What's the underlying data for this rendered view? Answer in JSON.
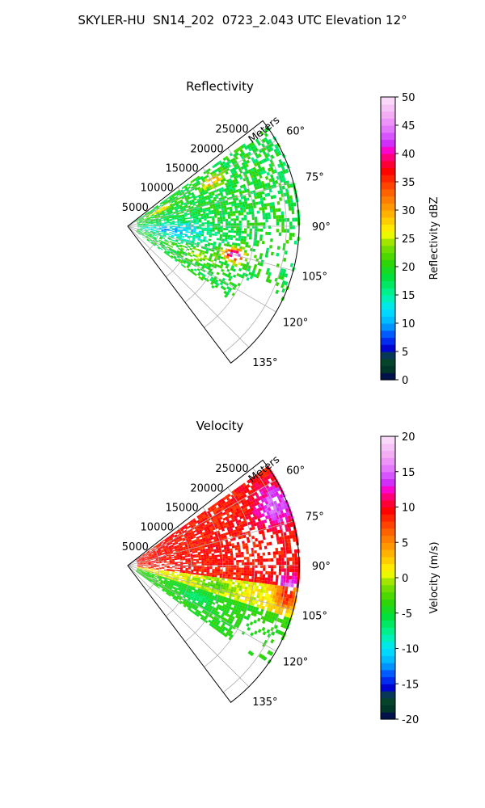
{
  "title": "SKYLER-HU  SN14_202  0723_2.043 UTC Elevation 12°",
  "chart_data": [
    {
      "type": "heatmap",
      "projection": "polar-sector",
      "title": "Reflectivity",
      "radial_label": "Meters",
      "radial_ticks": [
        5000,
        10000,
        15000,
        20000,
        25000
      ],
      "radial_range": [
        0,
        27000
      ],
      "azimuth_range_deg": [
        52,
        143
      ],
      "azimuth_ticks": [
        60,
        75,
        90,
        105,
        120,
        135
      ],
      "azimuth_tick_labels": [
        "60°",
        "75°",
        "90°",
        "105°",
        "120°",
        "135°"
      ],
      "grid": true,
      "colorbar": {
        "label": "Reflectivity dBZ",
        "range": [
          0,
          50
        ],
        "ticks": [
          0,
          5,
          10,
          15,
          20,
          25,
          30,
          35,
          40,
          45,
          50
        ],
        "levels": 40,
        "colormap": "NWS reflectivity (navy - blue - cyan - green - yellow - orange - red - magenta - white)"
      },
      "features": [
        {
          "desc": "broad weak echo field",
          "value_dbz": 20,
          "azimuth_deg": [
            55,
            125
          ],
          "range_m": [
            3000,
            27000
          ]
        },
        {
          "desc": "weak echoes near radar",
          "value_dbz": 12,
          "azimuth_deg": [
            85,
            110
          ],
          "range_m": [
            500,
            14000
          ]
        },
        {
          "desc": "strong core",
          "value_dbz": 45,
          "azimuth_deg": 105,
          "range_m": 17500
        },
        {
          "desc": "moderate echoes",
          "value_dbz": 33,
          "azimuth_deg": 62,
          "range_m": 15000
        }
      ]
    },
    {
      "type": "heatmap",
      "projection": "polar-sector",
      "title": "Velocity",
      "radial_label": "Meters",
      "radial_ticks": [
        5000,
        10000,
        15000,
        20000,
        25000
      ],
      "radial_range": [
        0,
        27000
      ],
      "azimuth_range_deg": [
        52,
        143
      ],
      "azimuth_ticks": [
        60,
        75,
        90,
        105,
        120,
        135
      ],
      "azimuth_tick_labels": [
        "60°",
        "75°",
        "90°",
        "105°",
        "120°",
        "135°"
      ],
      "grid": true,
      "colorbar": {
        "label": "Velocity (m/s)",
        "range": [
          -20,
          20
        ],
        "ticks": [
          -20,
          -15,
          -10,
          -5,
          0,
          5,
          10,
          15,
          20
        ],
        "levels": 40,
        "colormap": "diverging (navy - blue - cyan - green - yellow - orange - red - magenta - white)"
      },
      "features": [
        {
          "desc": "outbound flow dominating north sector",
          "value_ms": 9,
          "azimuth_deg": [
            55,
            100
          ],
          "range_m": [
            2000,
            27000
          ]
        },
        {
          "desc": "strong outbound at far range",
          "value_ms": 15,
          "azimuth_deg": [
            60,
            105
          ],
          "range_m": [
            22000,
            27000
          ]
        },
        {
          "desc": "near-zero velocities",
          "value_ms": 1,
          "azimuth_deg": [
            95,
            110
          ],
          "range_m": [
            5000,
            18000
          ]
        },
        {
          "desc": "inbound flow south sector",
          "value_ms": -4,
          "azimuth_deg": [
            108,
            125
          ],
          "range_m": [
            5000,
            18000
          ]
        }
      ]
    }
  ]
}
